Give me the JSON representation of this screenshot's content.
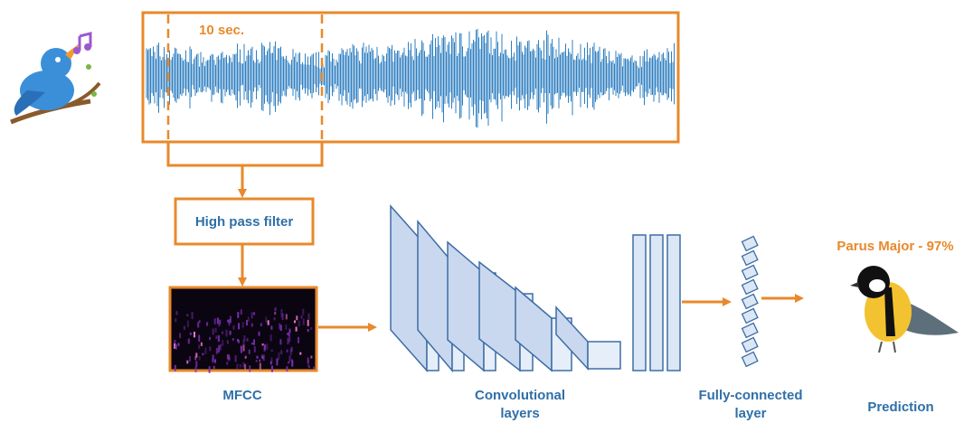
{
  "waveform": {
    "window_label": "10 sec."
  },
  "filter": {
    "label": "High pass filter"
  },
  "mfcc": {
    "label": "MFCC"
  },
  "conv": {
    "label": [
      "Convolutional",
      "layers"
    ]
  },
  "fc": {
    "label": [
      "Fully-connected",
      "layer"
    ]
  },
  "prediction": {
    "result": "Parus Major - 97%",
    "label": "Prediction"
  }
}
